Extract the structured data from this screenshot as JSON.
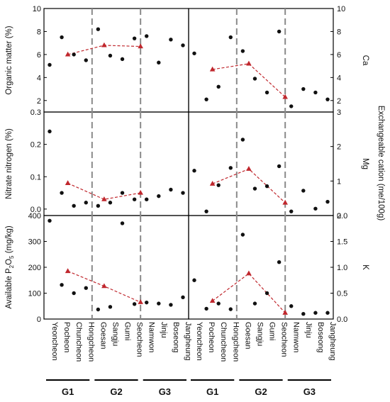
{
  "chart_data": [
    {
      "type": "scatter",
      "panel": "left",
      "ylabel": "Organic matter (%)",
      "ylim": [
        1,
        10
      ],
      "yticks": [
        "2",
        "4",
        "6",
        "8",
        "10"
      ],
      "categories": [
        "Yeoncheon",
        "Pocheon",
        "Chuncheon",
        "Hongcheon",
        "Goesan",
        "Sangju",
        "Gumi",
        "Seocheon",
        "Namwon",
        "Jinju",
        "Boseong",
        "Jangheung"
      ],
      "values": [
        5.1,
        7.5,
        6.0,
        5.5,
        8.2,
        5.9,
        5.6,
        7.4,
        7.6,
        5.3,
        7.3,
        6.8
      ],
      "group_means": {
        "x": [
          1.5,
          4.5,
          7.5
        ],
        "y": [
          6.0,
          6.8,
          6.7
        ]
      }
    },
    {
      "type": "scatter",
      "panel": "left",
      "ylabel": "Nitrate nitrogen (%)",
      "ylim": [
        -0.02,
        0.3
      ],
      "yticks": [
        "0.0",
        "0.1",
        "0.2",
        "0.3"
      ],
      "categories": [
        "Yeoncheon",
        "Pocheon",
        "Chuncheon",
        "Hongcheon",
        "Goesan",
        "Sangju",
        "Gumi",
        "Seocheon",
        "Namwon",
        "Jinju",
        "Boseong",
        "Jangheung"
      ],
      "values": [
        0.24,
        0.05,
        0.01,
        0.02,
        0.01,
        0.02,
        0.05,
        0.03,
        0.03,
        0.04,
        0.06,
        0.05
      ],
      "group_means": {
        "x": [
          1.5,
          4.5,
          7.5
        ],
        "y": [
          0.08,
          0.03,
          0.05
        ]
      }
    },
    {
      "type": "scatter",
      "panel": "left",
      "ylabel": "Available P₂O₅ (mg/kg)",
      "ylim": [
        0,
        400
      ],
      "yticks": [
        "0",
        "100",
        "200",
        "300",
        "400"
      ],
      "categories": [
        "Yeoncheon",
        "Pocheon",
        "Chuncheon",
        "Hongcheon",
        "Goesan",
        "Sangju",
        "Gumi",
        "Seocheon",
        "Namwon",
        "Jinju",
        "Boseong",
        "Jangheung"
      ],
      "values": [
        380,
        132,
        100,
        120,
        37,
        47,
        370,
        58,
        64,
        60,
        55,
        84
      ],
      "group_means": {
        "x": [
          1.5,
          4.5,
          7.5
        ],
        "y": [
          185,
          127,
          65
        ]
      }
    },
    {
      "type": "scatter",
      "panel": "right",
      "ylabel": "Ca",
      "ylim": [
        1,
        10
      ],
      "yticks": [
        "2",
        "4",
        "6",
        "8",
        "10"
      ],
      "categories": [
        "Yeoncheon",
        "Pocheon",
        "Chuncheon",
        "Hongcheon",
        "Goesan",
        "Sangju",
        "Gumi",
        "Seocheon",
        "Namwon",
        "Jinju",
        "Boseong",
        "Jangheung"
      ],
      "values": [
        6.1,
        2.1,
        3.2,
        7.5,
        6.3,
        3.9,
        2.7,
        8.0,
        1.5,
        3.0,
        2.7,
        2.1
      ],
      "group_means": {
        "x": [
          1.5,
          4.5,
          7.5
        ],
        "y": [
          4.7,
          5.2,
          2.3
        ]
      }
    },
    {
      "type": "scatter",
      "panel": "right",
      "ylabel": "Mg",
      "ylim": [
        0,
        3
      ],
      "yticks": [
        "0",
        "1",
        "2",
        "3"
      ],
      "categories": [
        "Yeoncheon",
        "Pocheon",
        "Chuncheon",
        "Hongcheon",
        "Goesan",
        "Sangju",
        "Gumi",
        "Seocheon",
        "Namwon",
        "Jinju",
        "Boseong",
        "Jangheung"
      ],
      "values": [
        1.3,
        0.12,
        0.88,
        1.38,
        2.2,
        0.78,
        0.85,
        1.43,
        0.12,
        0.72,
        0.2,
        0.4
      ],
      "group_means": {
        "x": [
          1.5,
          4.5,
          7.5
        ],
        "y": [
          0.92,
          1.35,
          0.37
        ]
      }
    },
    {
      "type": "scatter",
      "panel": "right",
      "ylabel": "K",
      "ylim": [
        0,
        2.0
      ],
      "yticks": [
        "0.0",
        "0.5",
        "1.0",
        "1.5",
        "2.0"
      ],
      "categories": [
        "Yeoncheon",
        "Pocheon",
        "Chuncheon",
        "Hongcheon",
        "Goesan",
        "Sangju",
        "Gumi",
        "Seocheon",
        "Namwon",
        "Jinju",
        "Boseong",
        "Jangheung"
      ],
      "values": [
        0.75,
        0.2,
        0.3,
        0.19,
        1.63,
        0.3,
        0.5,
        1.1,
        0.25,
        0.1,
        0.12,
        0.12
      ],
      "group_means": {
        "x": [
          1.5,
          4.5,
          7.5
        ],
        "y": [
          0.35,
          0.88,
          0.12
        ]
      }
    }
  ],
  "right_axis_label": "Exchangeable cation (me/100g)",
  "groups": [
    "G1",
    "G2",
    "G3"
  ],
  "colors": {
    "points": "#111111",
    "means": "#c0272d",
    "divider": "#8a8a8a",
    "axis": "#000000"
  }
}
